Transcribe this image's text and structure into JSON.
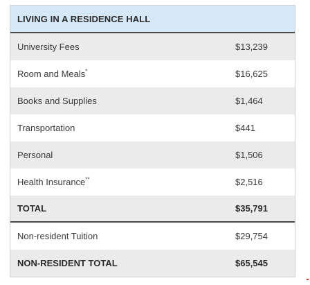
{
  "table": {
    "header": "LIVING IN A RESIDENCE HALL",
    "rows": [
      {
        "label": "University Fees",
        "suffix": "",
        "value": "$13,239"
      },
      {
        "label": "Room and Meals",
        "suffix": "*",
        "value": "$16,625"
      },
      {
        "label": "Books and Supplies",
        "suffix": "",
        "value": "$1,464"
      },
      {
        "label": "Transportation",
        "suffix": "",
        "value": "$441"
      },
      {
        "label": "Personal",
        "suffix": "",
        "value": "$1,506"
      },
      {
        "label": "Health Insurance",
        "suffix": "**",
        "value": "$2,516"
      }
    ],
    "total": {
      "label": "TOTAL",
      "value": "$35,791"
    },
    "tuition": {
      "label": "Non-resident Tuition",
      "value": "$29,754"
    },
    "nonresident_total": {
      "label": "NON-RESIDENT TOTAL",
      "value": "$65,545"
    }
  }
}
